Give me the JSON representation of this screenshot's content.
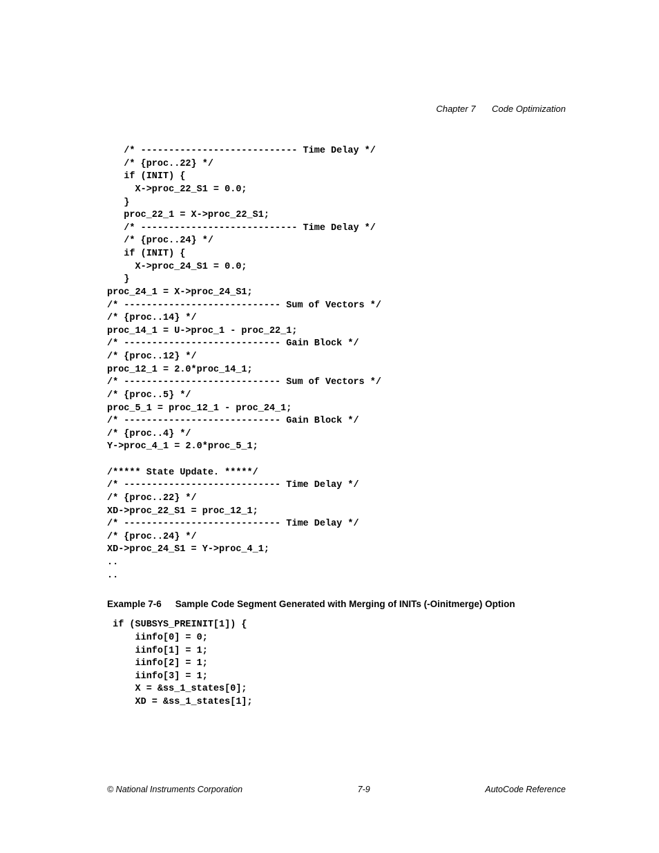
{
  "header": {
    "chapter": "Chapter 7",
    "title": "Code Optimization"
  },
  "code_block_1": "   /* ---------------------------- Time Delay */\n   /* {proc..22} */\n   if (INIT) {\n     X->proc_22_S1 = 0.0;\n   }\n   proc_22_1 = X->proc_22_S1;\n   /* ---------------------------- Time Delay */\n   /* {proc..24} */\n   if (INIT) {\n     X->proc_24_S1 = 0.0;\n   }\nproc_24_1 = X->proc_24_S1;\n/* ---------------------------- Sum of Vectors */\n/* {proc..14} */\nproc_14_1 = U->proc_1 - proc_22_1;\n/* ---------------------------- Gain Block */\n/* {proc..12} */\nproc_12_1 = 2.0*proc_14_1;\n/* ---------------------------- Sum of Vectors */\n/* {proc..5} */\nproc_5_1 = proc_12_1 - proc_24_1;\n/* ---------------------------- Gain Block */\n/* {proc..4} */\nY->proc_4_1 = 2.0*proc_5_1;\n\n/***** State Update. *****/\n/* ---------------------------- Time Delay */\n/* {proc..22} */\nXD->proc_22_S1 = proc_12_1;\n/* ---------------------------- Time Delay */\n/* {proc..24} */\nXD->proc_24_S1 = Y->proc_4_1;\n..\n..",
  "example": {
    "number": "Example 7-6",
    "caption": "Sample Code Segment Generated with Merging of INITs (-Oinitmerge) Option"
  },
  "code_block_2": " if (SUBSYS_PREINIT[1]) {\n     iinfo[0] = 0;\n     iinfo[1] = 1;\n     iinfo[2] = 1;\n     iinfo[3] = 1;\n     X = &ss_1_states[0];\n     XD = &ss_1_states[1];",
  "footer": {
    "left": "© National Instruments Corporation",
    "center": "7-9",
    "right": "AutoCode Reference"
  }
}
